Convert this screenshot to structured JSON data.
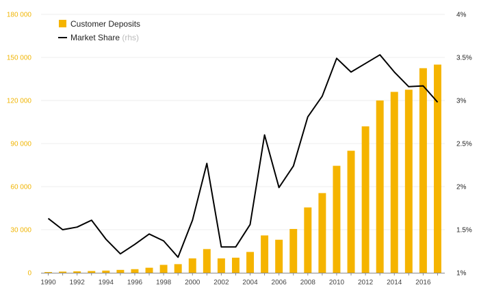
{
  "chart_data": {
    "type": "bar",
    "x": [
      "1990",
      "1991",
      "1992",
      "1993",
      "1994",
      "1995",
      "1996",
      "1997",
      "1998",
      "1999",
      "2000",
      "2001",
      "2002",
      "2003",
      "2004",
      "2005",
      "2006",
      "2007",
      "2008",
      "2009",
      "2010",
      "2011",
      "2012",
      "2013",
      "2014",
      "2015",
      "2016",
      "2017"
    ],
    "x_tick_labels": [
      "1990",
      "1992",
      "1994",
      "1996",
      "1998",
      "2000",
      "2002",
      "2004",
      "2006",
      "2008",
      "2010",
      "2012",
      "2014",
      "2016"
    ],
    "series": [
      {
        "name": "Customer Deposits",
        "type": "bar",
        "axis": "left",
        "color": "#f5b400",
        "values": [
          500,
          800,
          1000,
          1200,
          1500,
          2000,
          2500,
          3500,
          5500,
          6000,
          10000,
          16500,
          10000,
          10500,
          14500,
          26000,
          23000,
          30500,
          45500,
          55500,
          74500,
          85000,
          102000,
          120000,
          126000,
          127500,
          142500,
          145000
        ]
      },
      {
        "name": "Market Share",
        "name_suffix": "(rhs)",
        "type": "line",
        "axis": "right",
        "color": "#000000",
        "unit": "%",
        "values": [
          1.63,
          1.5,
          1.53,
          1.61,
          1.39,
          1.22,
          1.33,
          1.45,
          1.37,
          1.18,
          1.61,
          2.27,
          1.3,
          1.3,
          1.56,
          2.6,
          1.99,
          2.24,
          2.81,
          3.05,
          3.49,
          3.33,
          3.43,
          3.53,
          3.33,
          3.16,
          3.17,
          2.98
        ]
      }
    ],
    "y_left": {
      "ticks": [
        "0",
        "30 000",
        "60 000",
        "90 000",
        "120 000",
        "150 000",
        "180 000"
      ],
      "tick_values": [
        0,
        30000,
        60000,
        90000,
        120000,
        150000,
        180000
      ],
      "range": [
        0,
        180000
      ]
    },
    "y_right": {
      "ticks": [
        "1%",
        "1.5%",
        "2%",
        "2.5%",
        "3%",
        "3.5%",
        "4%"
      ],
      "tick_values": [
        1,
        1.5,
        2,
        2.5,
        3,
        3.5,
        4
      ],
      "range": [
        1,
        4
      ]
    },
    "grid": true,
    "legend_position": "top-left",
    "title": "",
    "xlabel": "",
    "ylabel": ""
  },
  "colors": {
    "bar": "#f5b400",
    "line": "#000000",
    "left_axis_text": "#f0b400",
    "grid": "#ececec"
  }
}
